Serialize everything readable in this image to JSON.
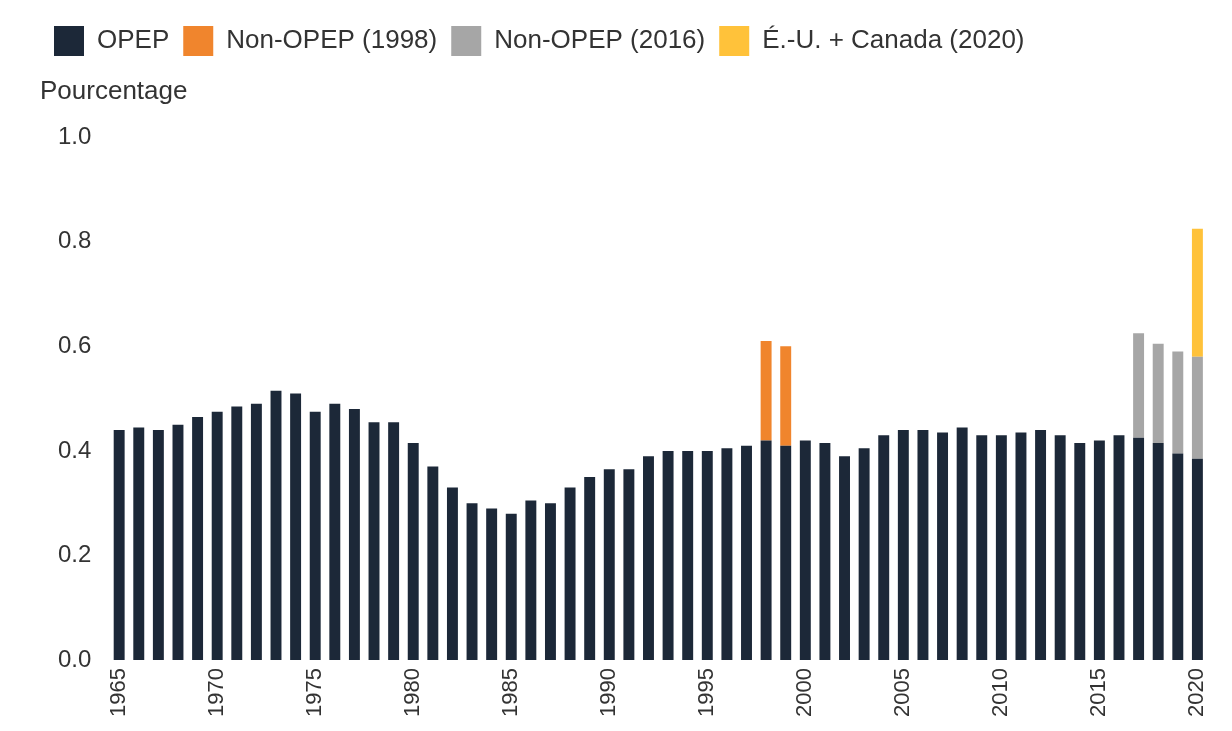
{
  "chart_data": {
    "type": "bar",
    "stacked": true,
    "grid": false,
    "legend": "top-left",
    "y_label": "Pourcentage",
    "categories": [
      "1965",
      null,
      null,
      null,
      null,
      "1970",
      null,
      null,
      null,
      null,
      "1975",
      null,
      null,
      null,
      null,
      "1980",
      null,
      null,
      null,
      null,
      "1985",
      null,
      null,
      null,
      null,
      "1990",
      null,
      null,
      null,
      null,
      "1995",
      null,
      null,
      null,
      null,
      "2000",
      null,
      null,
      null,
      null,
      "2005",
      null,
      null,
      null,
      null,
      "2010",
      null,
      null,
      null,
      null,
      "2015",
      null,
      null,
      null,
      null,
      "2020"
    ],
    "ylim": [
      0,
      1
    ],
    "yticks": [
      {
        "value": 0,
        "label": "0.0"
      },
      0.2,
      0.4,
      0.6,
      0.8,
      {
        "value": 1,
        "label": "1.0"
      }
    ],
    "series": [
      {
        "name": "OPEP",
        "color": "#1c2838",
        "values": [
          0.44,
          0.445,
          0.44,
          0.45,
          0.465,
          0.475,
          0.485,
          0.49,
          0.515,
          0.51,
          0.475,
          0.49,
          0.48,
          0.455,
          0.455,
          0.415,
          0.37,
          0.33,
          0.3,
          0.29,
          0.28,
          0.305,
          0.3,
          0.33,
          0.35,
          0.365,
          0.365,
          0.39,
          0.4,
          0.4,
          0.4,
          0.405,
          0.41,
          0.42,
          0.41,
          0.42,
          0.415,
          0.39,
          0.405,
          0.43,
          0.44,
          0.44,
          0.435,
          0.445,
          0.43,
          0.43,
          0.435,
          0.44,
          0.43,
          0.415,
          0.42,
          0.43,
          0.425,
          0.415,
          0.395,
          0.385
        ]
      },
      {
        "name": "Non-OPEP (1998)",
        "color": "#f0852d",
        "values": [
          null,
          null,
          null,
          null,
          null,
          null,
          null,
          null,
          null,
          null,
          null,
          null,
          null,
          null,
          null,
          null,
          null,
          null,
          null,
          null,
          null,
          null,
          null,
          null,
          null,
          null,
          null,
          null,
          null,
          null,
          null,
          null,
          null,
          0.19,
          0.19,
          null,
          null,
          null,
          null,
          null,
          null,
          null,
          null,
          null,
          null,
          null,
          null,
          null,
          null,
          null,
          null,
          null,
          null,
          null,
          null,
          null
        ]
      },
      {
        "name": "Non-OPEP (2016)",
        "color": "#a6a6a6",
        "values": [
          null,
          null,
          null,
          null,
          null,
          null,
          null,
          null,
          null,
          null,
          null,
          null,
          null,
          null,
          null,
          null,
          null,
          null,
          null,
          null,
          null,
          null,
          null,
          null,
          null,
          null,
          null,
          null,
          null,
          null,
          null,
          null,
          null,
          null,
          null,
          null,
          null,
          null,
          null,
          null,
          null,
          null,
          null,
          null,
          null,
          null,
          null,
          null,
          null,
          null,
          null,
          null,
          0.2,
          0.19,
          0.195,
          0.195
        ]
      },
      {
        "name": "É.-U. + Canada (2020)",
        "color": "#ffc23a",
        "values": [
          null,
          null,
          null,
          null,
          null,
          null,
          null,
          null,
          null,
          null,
          null,
          null,
          null,
          null,
          null,
          null,
          null,
          null,
          null,
          null,
          null,
          null,
          null,
          null,
          null,
          null,
          null,
          null,
          null,
          null,
          null,
          null,
          null,
          null,
          null,
          null,
          null,
          null,
          null,
          null,
          null,
          null,
          null,
          null,
          null,
          null,
          null,
          null,
          null,
          null,
          null,
          null,
          null,
          null,
          null,
          0.245
        ]
      }
    ]
  }
}
